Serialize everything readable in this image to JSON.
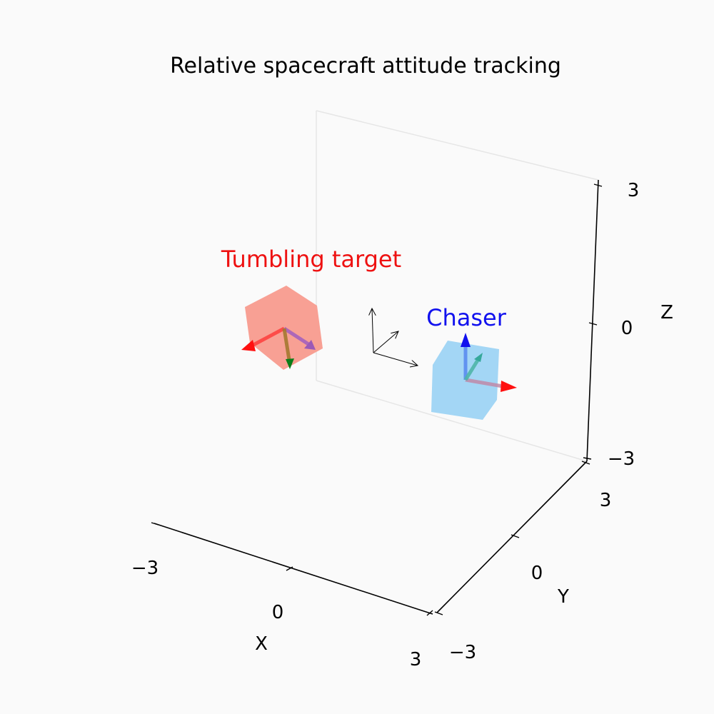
{
  "title": "Relative spacecraft attitude tracking",
  "axes": {
    "x": {
      "label": "X",
      "range": [
        -3,
        3
      ],
      "ticks": [
        {
          "value": -3,
          "label": "−3"
        },
        {
          "value": 0,
          "label": "0"
        },
        {
          "value": 3,
          "label": "3"
        }
      ]
    },
    "y": {
      "label": "Y",
      "range": [
        -3,
        3
      ],
      "ticks": [
        {
          "value": -3,
          "label": "−3"
        },
        {
          "value": 0,
          "label": "0"
        },
        {
          "value": 3,
          "label": "3"
        }
      ]
    },
    "z": {
      "label": "Z",
      "range": [
        -3,
        3
      ],
      "ticks": [
        {
          "value": -3,
          "label": "−3"
        },
        {
          "value": 0,
          "label": "0"
        },
        {
          "value": 3,
          "label": "3"
        }
      ]
    }
  },
  "bodies": {
    "target": {
      "label": "Tumbling target",
      "color": "#ee1111",
      "fill": "#f8a094"
    },
    "chaser": {
      "label": "Chaser",
      "color": "#1111ee",
      "fill": "#a3d6f5"
    }
  },
  "colors": {
    "background": "#fafafa",
    "axis": "#000000",
    "pane_edge": "#e6e6e6"
  }
}
